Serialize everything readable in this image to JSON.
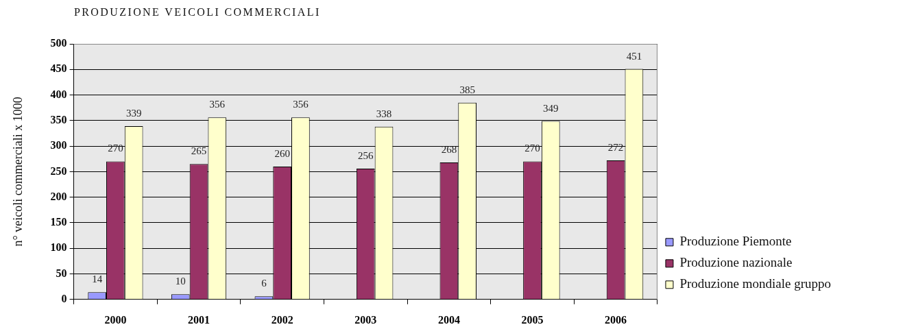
{
  "chart_data": {
    "type": "bar",
    "title": "PRODUZIONE VEICOLI COMMERCIALI",
    "ylabel": "n° veicoli commerciali x 1000",
    "categories": [
      "2000",
      "2001",
      "2002",
      "2003",
      "2004",
      "2005",
      "2006"
    ],
    "series": [
      {
        "name": "Produzione Piemonte",
        "color": "#9999ff",
        "values": [
          14,
          10,
          6,
          null,
          null,
          null,
          null
        ]
      },
      {
        "name": "Produzione nazionale",
        "color": "#993366",
        "values": [
          270,
          265,
          260,
          256,
          268,
          270,
          272
        ]
      },
      {
        "name": "Produzione mondiale gruppo",
        "color": "#ffffcc",
        "values": [
          339,
          356,
          356,
          338,
          385,
          349,
          451
        ]
      }
    ],
    "ylim": [
      0,
      500
    ],
    "yticks": [
      0,
      50,
      100,
      150,
      200,
      250,
      300,
      350,
      400,
      450,
      500
    ],
    "grid": "y",
    "legend": "bottom right",
    "data_labels": true
  }
}
